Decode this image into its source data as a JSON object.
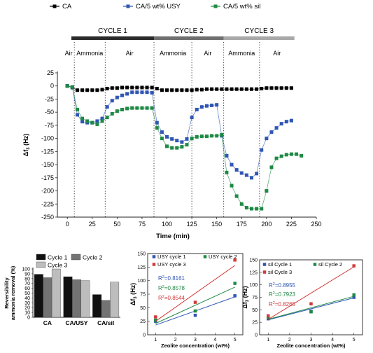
{
  "chart_data": [
    {
      "type": "line",
      "legend": [
        "CA",
        "CA/5 wt% USY",
        "CA/5 wt% sil"
      ],
      "xlabel": "Time (min)",
      "ylabel": "Δf3 (Hz)",
      "xlim": [
        -10,
        250
      ],
      "ylim": [
        -250,
        25
      ],
      "xticks": [
        0,
        25,
        50,
        75,
        100,
        125,
        150,
        175,
        200,
        225,
        250
      ],
      "yticks": [
        25,
        0,
        -25,
        -50,
        -75,
        -100,
        -125,
        -150,
        -175,
        -200,
        -225,
        -250
      ],
      "cycles": [
        {
          "label": "CYCLE 1",
          "start": 7,
          "end": 87,
          "color": "#2b2b2b"
        },
        {
          "label": "CYCLE 2",
          "start": 87,
          "end": 157,
          "color": "#6f6f6f"
        },
        {
          "label": "CYCLE 3",
          "start": 157,
          "end": 228,
          "color": "#a8a8a8"
        }
      ],
      "phases": [
        {
          "label": "Air",
          "start": -10,
          "end": 7
        },
        {
          "label": "Ammonia",
          "start": 7,
          "end": 38
        },
        {
          "label": "Air",
          "start": 38,
          "end": 87
        },
        {
          "label": "Ammonia",
          "start": 87,
          "end": 125
        },
        {
          "label": "Air",
          "start": 125,
          "end": 157
        },
        {
          "label": "Ammonia",
          "start": 157,
          "end": 193
        },
        {
          "label": "Air",
          "start": 193,
          "end": 228
        }
      ],
      "dividers": [
        7,
        38,
        87,
        125,
        157,
        193
      ],
      "series": [
        {
          "name": "CA",
          "color": "#000000",
          "x": [
            0,
            5,
            10,
            15,
            20,
            25,
            30,
            35,
            40,
            45,
            50,
            55,
            60,
            65,
            70,
            75,
            80,
            85,
            90,
            95,
            100,
            105,
            110,
            115,
            120,
            125,
            130,
            135,
            140,
            145,
            150,
            155,
            160,
            165,
            170,
            175,
            180,
            185,
            190,
            195,
            200,
            205,
            210,
            215,
            220,
            225
          ],
          "y": [
            0,
            -3,
            -8,
            -8,
            -8,
            -8,
            -8,
            -7,
            -5,
            -4,
            -4,
            -3,
            -3,
            -3,
            -3,
            -3,
            -3,
            -3,
            -5,
            -8,
            -8,
            -8,
            -8,
            -8,
            -8,
            -8,
            -7,
            -7,
            -6,
            -6,
            -6,
            -6,
            -6,
            -6,
            -6,
            -6,
            -6,
            -6,
            -6,
            -5,
            -4,
            -4,
            -4,
            -4,
            -4,
            -4
          ]
        },
        {
          "name": "CA/5 wt% USY",
          "color": "#2f56b4",
          "x": [
            0,
            5,
            10,
            15,
            20,
            25,
            30,
            35,
            40,
            45,
            50,
            55,
            60,
            65,
            70,
            75,
            80,
            85,
            90,
            95,
            100,
            105,
            110,
            115,
            120,
            125,
            130,
            135,
            140,
            145,
            150,
            155,
            160,
            165,
            170,
            175,
            180,
            185,
            190,
            195,
            200,
            205,
            210,
            215,
            220,
            225
          ],
          "y": [
            0,
            -2,
            -55,
            -68,
            -70,
            -70,
            -67,
            -62,
            -40,
            -28,
            -22,
            -18,
            -15,
            -12,
            -12,
            -12,
            -12,
            -13,
            -70,
            -88,
            -97,
            -101,
            -104,
            -107,
            -101,
            -60,
            -45,
            -40,
            -38,
            -37,
            -36,
            -95,
            -133,
            -150,
            -160,
            -166,
            -170,
            -175,
            -167,
            -122,
            -100,
            -88,
            -80,
            -72,
            -68,
            -66
          ]
        },
        {
          "name": "CA/5 wt% sil",
          "color": "#1e8a44",
          "x": [
            0,
            5,
            10,
            15,
            20,
            25,
            30,
            35,
            40,
            45,
            50,
            55,
            60,
            65,
            70,
            75,
            80,
            85,
            90,
            95,
            100,
            105,
            110,
            115,
            120,
            125,
            130,
            135,
            140,
            145,
            150,
            155,
            160,
            165,
            170,
            175,
            180,
            185,
            190,
            195,
            200,
            205,
            210,
            215,
            220,
            225,
            230,
            235
          ],
          "y": [
            0,
            -2,
            -45,
            -62,
            -67,
            -70,
            -73,
            -67,
            -60,
            -53,
            -48,
            -45,
            -43,
            -42,
            -42,
            -42,
            -42,
            -42,
            -80,
            -100,
            -115,
            -118,
            -118,
            -116,
            -112,
            -100,
            -97,
            -96,
            -96,
            -95,
            -95,
            -93,
            -165,
            -190,
            -210,
            -225,
            -232,
            -234,
            -234,
            -234,
            -200,
            -155,
            -138,
            -134,
            -131,
            -130,
            -130,
            -133
          ]
        }
      ]
    },
    {
      "type": "bar",
      "ylabel": "Reversibility ammonia removal (%)",
      "categories": [
        "CA",
        "CA/USY",
        "CA/sil"
      ],
      "ylim": [
        0,
        100
      ],
      "yticks": [
        0,
        10,
        20,
        30,
        40,
        50,
        60,
        70,
        80,
        90,
        100
      ],
      "series": [
        {
          "name": "Cycle 1",
          "color": "#111111",
          "values": [
            89,
            84,
            47
          ]
        },
        {
          "name": "Cycle 2",
          "color": "#737373",
          "values": [
            82,
            78,
            35
          ]
        },
        {
          "name": "Cycle 3",
          "color": "#bdbdbd",
          "values": [
            100,
            76,
            73
          ]
        }
      ]
    },
    {
      "type": "scatter",
      "xlabel": "Zeolite concentration (wt%)",
      "ylabel": "Δf3 (Hz)",
      "xlim": [
        0.6,
        5.4
      ],
      "ylim": [
        0,
        150
      ],
      "xticks": [
        1,
        2,
        3,
        4,
        5
      ],
      "yticks": [
        0,
        25,
        50,
        75,
        100,
        125,
        150
      ],
      "series": [
        {
          "name": "USY cycle 1",
          "color": "#2f56b4",
          "marker": "square",
          "x": [
            1,
            3,
            5
          ],
          "y": [
            25,
            36,
            72
          ],
          "fit": [
            18,
            70
          ]
        },
        {
          "name": "USY cycle 2",
          "color": "#1e8a44",
          "marker": "square",
          "x": [
            1,
            3,
            5
          ],
          "y": [
            27,
            44,
            95
          ],
          "fit": [
            21,
            88
          ]
        },
        {
          "name": "USY cycle 3",
          "color": "#d23a3a",
          "marker": "square",
          "x": [
            1,
            3,
            5
          ],
          "y": [
            33,
            60,
            138
          ],
          "fit": [
            25,
            128
          ]
        }
      ],
      "annotations": [
        "R²=0.8161",
        "R²=0.8578",
        "R²=0.8544"
      ]
    },
    {
      "type": "scatter",
      "xlabel": "Zeolite concentration (wt%)",
      "ylabel": "Δf3 (Hz)",
      "xlim": [
        0.6,
        5.4
      ],
      "ylim": [
        0,
        150
      ],
      "xticks": [
        1,
        2,
        3,
        4,
        5
      ],
      "yticks": [
        0,
        25,
        50,
        75,
        100,
        125,
        150
      ],
      "series": [
        {
          "name": "sil Cycle 1",
          "color": "#2f56b4",
          "marker": "square",
          "x": [
            1,
            3,
            5
          ],
          "y": [
            32,
            47,
            75
          ],
          "fit": [
            30,
            74
          ]
        },
        {
          "name": "sil Cycle 2",
          "color": "#1e8a44",
          "marker": "square",
          "x": [
            1,
            3,
            5
          ],
          "y": [
            35,
            46,
            80
          ],
          "fit": [
            31,
            77
          ]
        },
        {
          "name": "sil Cycle 3",
          "color": "#d23a3a",
          "marker": "square",
          "x": [
            1,
            3,
            5
          ],
          "y": [
            38,
            62,
            138
          ],
          "fit": [
            31,
            136
          ]
        }
      ],
      "annotations": [
        "R²=0.8955",
        "R²=0.7923",
        "R²=0.8265"
      ]
    }
  ]
}
